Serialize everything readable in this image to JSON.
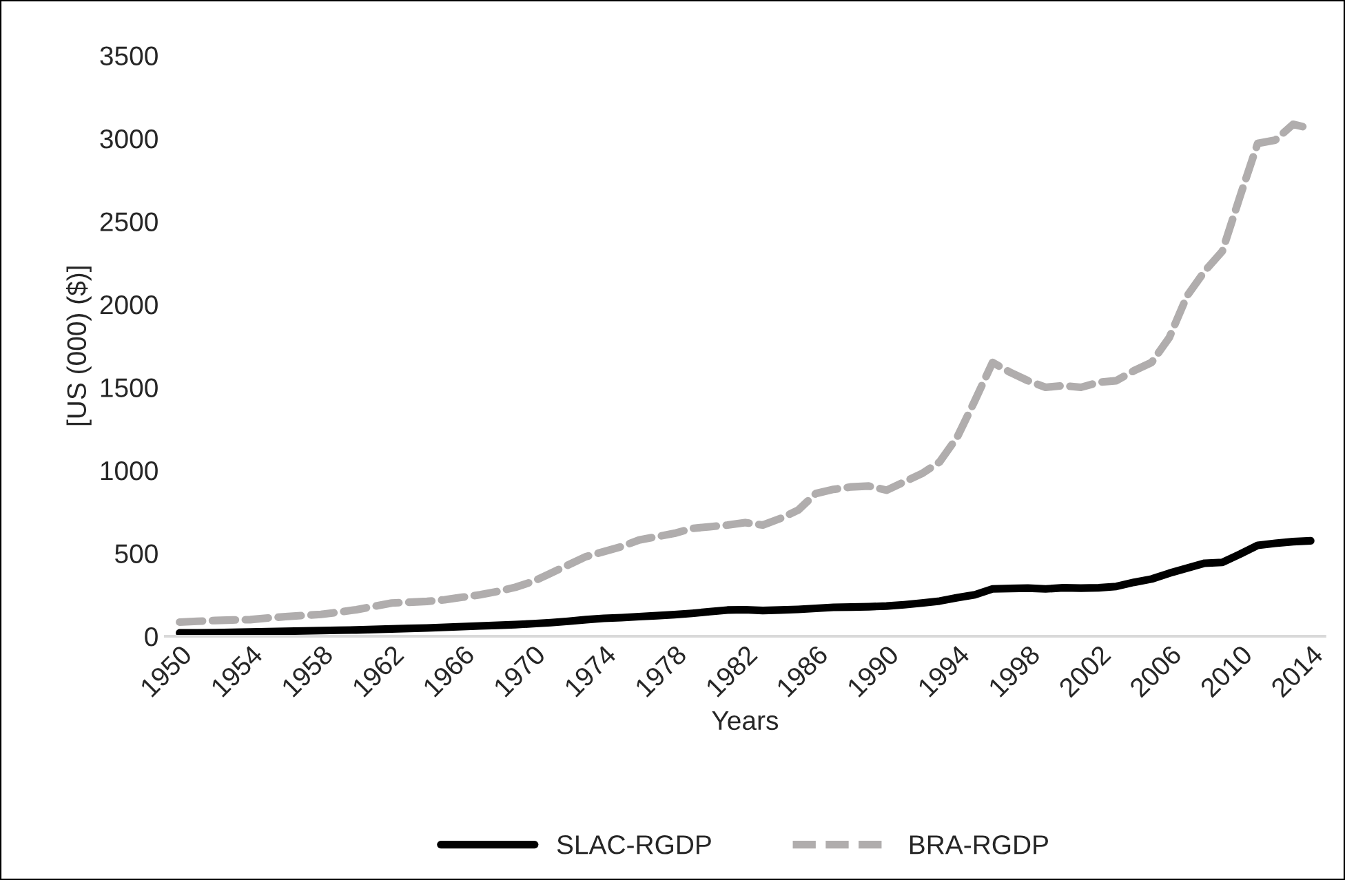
{
  "chart_data": {
    "type": "line",
    "xlabel": "Years",
    "ylabel": "[US (000) ($)]",
    "x": [
      1950,
      1951,
      1952,
      1953,
      1954,
      1955,
      1956,
      1957,
      1958,
      1959,
      1960,
      1961,
      1962,
      1963,
      1964,
      1965,
      1966,
      1967,
      1968,
      1969,
      1970,
      1971,
      1972,
      1973,
      1974,
      1975,
      1976,
      1977,
      1978,
      1979,
      1980,
      1981,
      1982,
      1983,
      1984,
      1985,
      1986,
      1987,
      1988,
      1989,
      1990,
      1991,
      1992,
      1993,
      1994,
      1995,
      1996,
      1997,
      1998,
      1999,
      2000,
      2001,
      2002,
      2003,
      2004,
      2005,
      2006,
      2007,
      2008,
      2009,
      2010,
      2011,
      2012,
      2013,
      2014
    ],
    "xlim": [
      1949.2,
      2014.8
    ],
    "xticks": [
      1950,
      1954,
      1958,
      1962,
      1966,
      1970,
      1974,
      1978,
      1982,
      1986,
      1990,
      1994,
      1998,
      2002,
      2006,
      2010,
      2014
    ],
    "ylim": [
      0,
      3500
    ],
    "yticks": [
      0,
      500,
      1000,
      1500,
      2000,
      2500,
      3000,
      3500
    ],
    "grid": false,
    "legend": "bottom",
    "series": [
      {
        "name": "SLAC-RGDP",
        "color": "#000000",
        "line_style": "solid",
        "values": [
          20,
          21,
          22,
          24,
          26,
          28,
          30,
          32,
          34,
          36,
          38,
          41,
          44,
          47,
          50,
          54,
          58,
          62,
          66,
          70,
          76,
          82,
          90,
          100,
          108,
          112,
          118,
          124,
          130,
          138,
          148,
          158,
          160,
          155,
          158,
          162,
          168,
          174,
          176,
          178,
          182,
          190,
          200,
          212,
          232,
          250,
          285,
          288,
          290,
          285,
          292,
          290,
          292,
          300,
          325,
          345,
          380,
          410,
          440,
          445,
          495,
          548,
          560,
          570,
          575
        ]
      },
      {
        "name": "BRA-RGDP",
        "color": "#b0adad",
        "line_style": "dashed",
        "values": [
          85,
          90,
          95,
          98,
          100,
          110,
          118,
          125,
          132,
          145,
          160,
          180,
          200,
          205,
          210,
          220,
          235,
          250,
          270,
          295,
          330,
          380,
          430,
          480,
          510,
          540,
          580,
          600,
          620,
          650,
          660,
          670,
          685,
          670,
          710,
          760,
          860,
          885,
          900,
          905,
          880,
          930,
          980,
          1050,
          1200,
          1420,
          1650,
          1590,
          1540,
          1500,
          1510,
          1500,
          1530,
          1540,
          1600,
          1650,
          1800,
          2050,
          2200,
          2320,
          2650,
          2970,
          2990,
          3085,
          3060
        ]
      }
    ]
  }
}
